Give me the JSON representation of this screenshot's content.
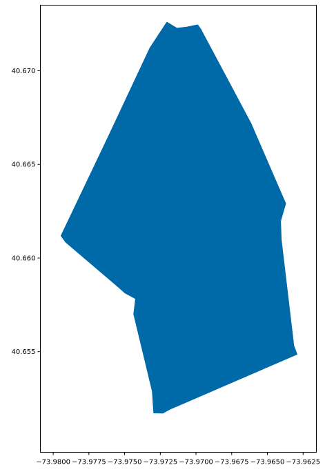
{
  "chart_data": {
    "type": "area",
    "title": "",
    "xlabel": "",
    "ylabel": "",
    "xlim": [
      -73.9809,
      -73.96157
    ],
    "ylim": [
      40.64963,
      40.6735
    ],
    "grid": false,
    "legend": "none",
    "fill_color": "#0069a7",
    "x_ticks": [
      -73.98,
      -73.9775,
      -73.975,
      -73.9725,
      -73.97,
      -73.9675,
      -73.965,
      -73.9625
    ],
    "x_tick_labels": [
      "−73.9800",
      "−73.9775",
      "−73.9750",
      "−73.9725",
      "−73.9700",
      "−73.9675",
      "−73.9650",
      "−73.9625"
    ],
    "y_ticks": [
      40.655,
      40.66,
      40.665,
      40.67
    ],
    "y_tick_labels": [
      "40.655",
      "40.660",
      "40.665",
      "40.670"
    ],
    "polygon": [
      [
        -73.97065,
        40.67233
      ],
      [
        -73.96988,
        40.67245
      ],
      [
        -73.96967,
        40.67222
      ],
      [
        -73.96615,
        40.66719
      ],
      [
        -73.96372,
        40.66291
      ],
      [
        -73.96408,
        40.66197
      ],
      [
        -73.96403,
        40.66098
      ],
      [
        -73.96315,
        40.65532
      ],
      [
        -73.96293,
        40.65486
      ],
      [
        -73.97182,
        40.65193
      ],
      [
        -73.97232,
        40.65172
      ],
      [
        -73.97296,
        40.65173
      ],
      [
        -73.97306,
        40.65289
      ],
      [
        -73.97436,
        40.65701
      ],
      [
        -73.97423,
        40.65783
      ],
      [
        -73.97498,
        40.65814
      ],
      [
        -73.97547,
        40.65847
      ],
      [
        -73.97913,
        40.66085
      ],
      [
        -73.97945,
        40.66119
      ],
      [
        -73.97618,
        40.66642
      ],
      [
        -73.97323,
        40.67121
      ],
      [
        -73.97204,
        40.67259
      ],
      [
        -73.97134,
        40.67227
      ]
    ]
  }
}
